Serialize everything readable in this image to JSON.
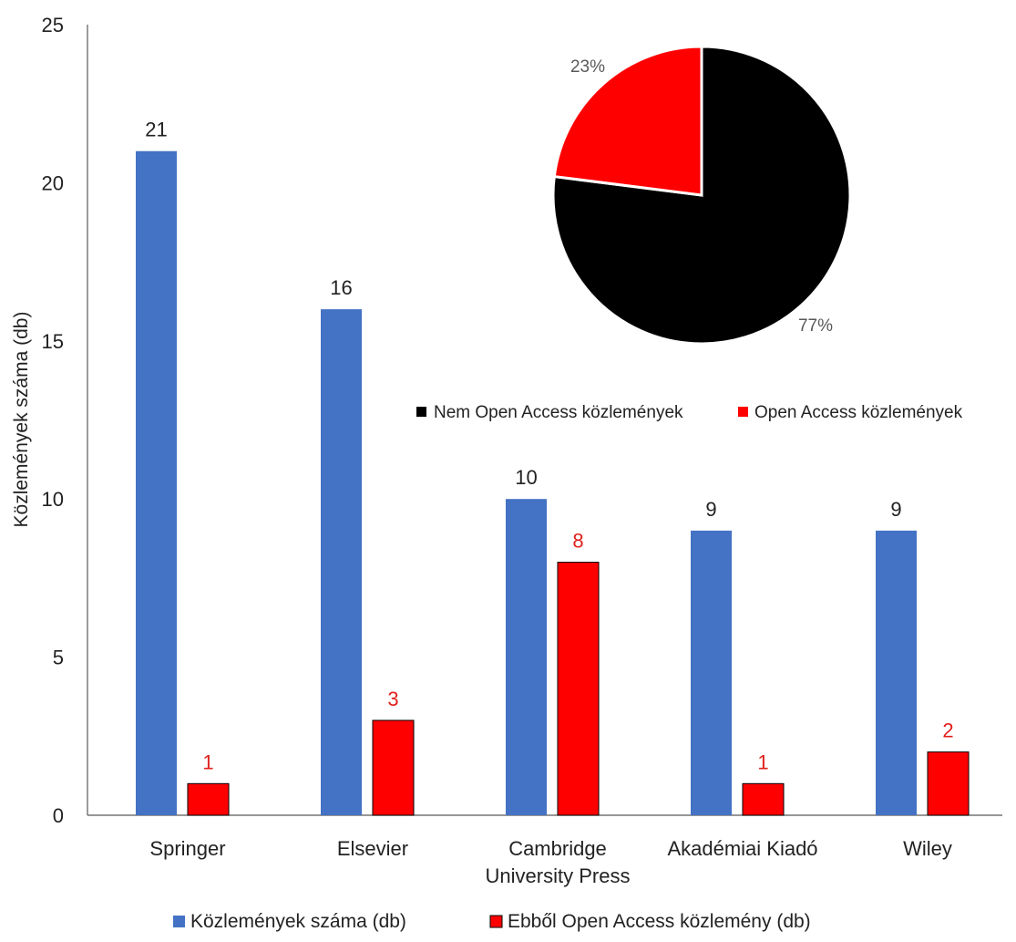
{
  "chart_data": [
    {
      "type": "bar",
      "categories": [
        "Springer",
        "Elsevier",
        "Cambridge University Press",
        "Akadémiai Kiadó",
        "Wiley"
      ],
      "category_lines": [
        [
          "Springer"
        ],
        [
          "Elsevier"
        ],
        [
          "Cambridge",
          "University Press"
        ],
        [
          "Akadémiai Kiadó"
        ],
        [
          "Wiley"
        ]
      ],
      "series": [
        {
          "name": "Közlemények száma (db)",
          "values": [
            21,
            16,
            10,
            9,
            9
          ],
          "color": "#4472C4",
          "label_color": "#222222"
        },
        {
          "name": "Ebből Open Access közlemény (db)",
          "values": [
            1,
            3,
            8,
            1,
            2
          ],
          "color": "#FF0000",
          "label_color": "#E0201C"
        }
      ],
      "ylabel": "Közlemények száma (db)",
      "ylim": [
        0,
        25
      ],
      "yticks": [
        0,
        5,
        10,
        15,
        20,
        25
      ],
      "grid": false,
      "legend_position": "bottom"
    },
    {
      "type": "pie",
      "slices": [
        {
          "name": "Nem Open Access közlemények",
          "value": 77,
          "label": "77%",
          "color": "#000000"
        },
        {
          "name": "Open Access közlemények",
          "value": 23,
          "label": "23%",
          "color": "#FF0000"
        }
      ],
      "legend_position": "bottom"
    }
  ]
}
